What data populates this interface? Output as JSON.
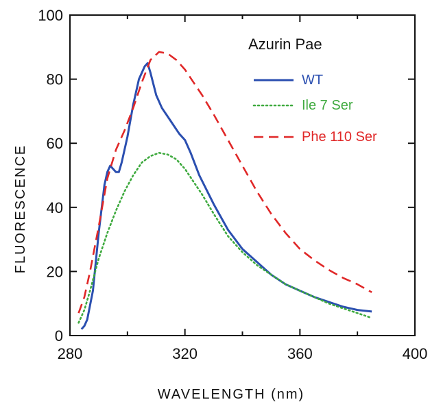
{
  "chart_data": {
    "type": "line",
    "title": "",
    "xlabel": "WAVELENGTH (nm)",
    "ylabel": "FLUORESCENCE",
    "xlim": [
      280,
      400
    ],
    "ylim": [
      0,
      100
    ],
    "xticks": [
      280,
      320,
      360,
      400
    ],
    "yticks": [
      0,
      20,
      40,
      60,
      80,
      100
    ],
    "xtick_labels": [
      "280",
      "320",
      "360",
      "400"
    ],
    "ytick_labels": [
      "0",
      "20",
      "40",
      "60",
      "80",
      "100"
    ],
    "grid": false,
    "legend": {
      "title": "Azurin Pae",
      "placement": "top-right"
    },
    "series": [
      {
        "name": "WT",
        "color": "#2b4fb0",
        "style": "solid",
        "x": [
          284,
          285,
          286,
          288,
          290,
          292,
          293,
          294,
          295,
          296,
          297,
          298,
          300,
          302,
          304,
          306,
          307,
          308,
          310,
          312,
          315,
          318,
          320,
          322,
          325,
          330,
          335,
          340,
          345,
          350,
          355,
          360,
          365,
          370,
          375,
          380,
          385
        ],
        "y": [
          2,
          3,
          5,
          14,
          32,
          47,
          51,
          53,
          52,
          51,
          51,
          54,
          62,
          72,
          80,
          84,
          85,
          82,
          75,
          71,
          67,
          63,
          61,
          57,
          50,
          41,
          33,
          27,
          23,
          19,
          16,
          14,
          12,
          10.5,
          9,
          8,
          7.5
        ]
      },
      {
        "name": "Ile 7 Ser",
        "color": "#3faa3f",
        "style": "dotted",
        "x": [
          283,
          285,
          287,
          290,
          293,
          296,
          299,
          302,
          305,
          308,
          311,
          314,
          317,
          320,
          323,
          326,
          330,
          335,
          340,
          345,
          350,
          355,
          360,
          365,
          370,
          375,
          380,
          385
        ],
        "y": [
          4,
          8,
          14,
          24,
          32,
          39,
          45,
          50,
          54,
          56,
          57,
          56.5,
          55,
          52,
          48,
          44,
          38,
          31,
          26,
          22,
          19,
          16,
          14,
          12,
          10,
          8.5,
          7,
          5.5
        ]
      },
      {
        "name": "Phe 110 Ser",
        "color": "#e02828",
        "style": "dashed",
        "x": [
          283,
          285,
          287,
          290,
          293,
          296,
          299,
          302,
          305,
          308,
          311,
          314,
          317,
          320,
          323,
          326,
          330,
          335,
          340,
          345,
          350,
          355,
          360,
          365,
          370,
          375,
          380,
          385
        ],
        "y": [
          7,
          12,
          20,
          34,
          49,
          58,
          64,
          71,
          79,
          86,
          88.5,
          88,
          86,
          83,
          79,
          75,
          69,
          61,
          53,
          45,
          38,
          32,
          27,
          23.5,
          20.5,
          18,
          16,
          13.5
        ]
      }
    ]
  }
}
